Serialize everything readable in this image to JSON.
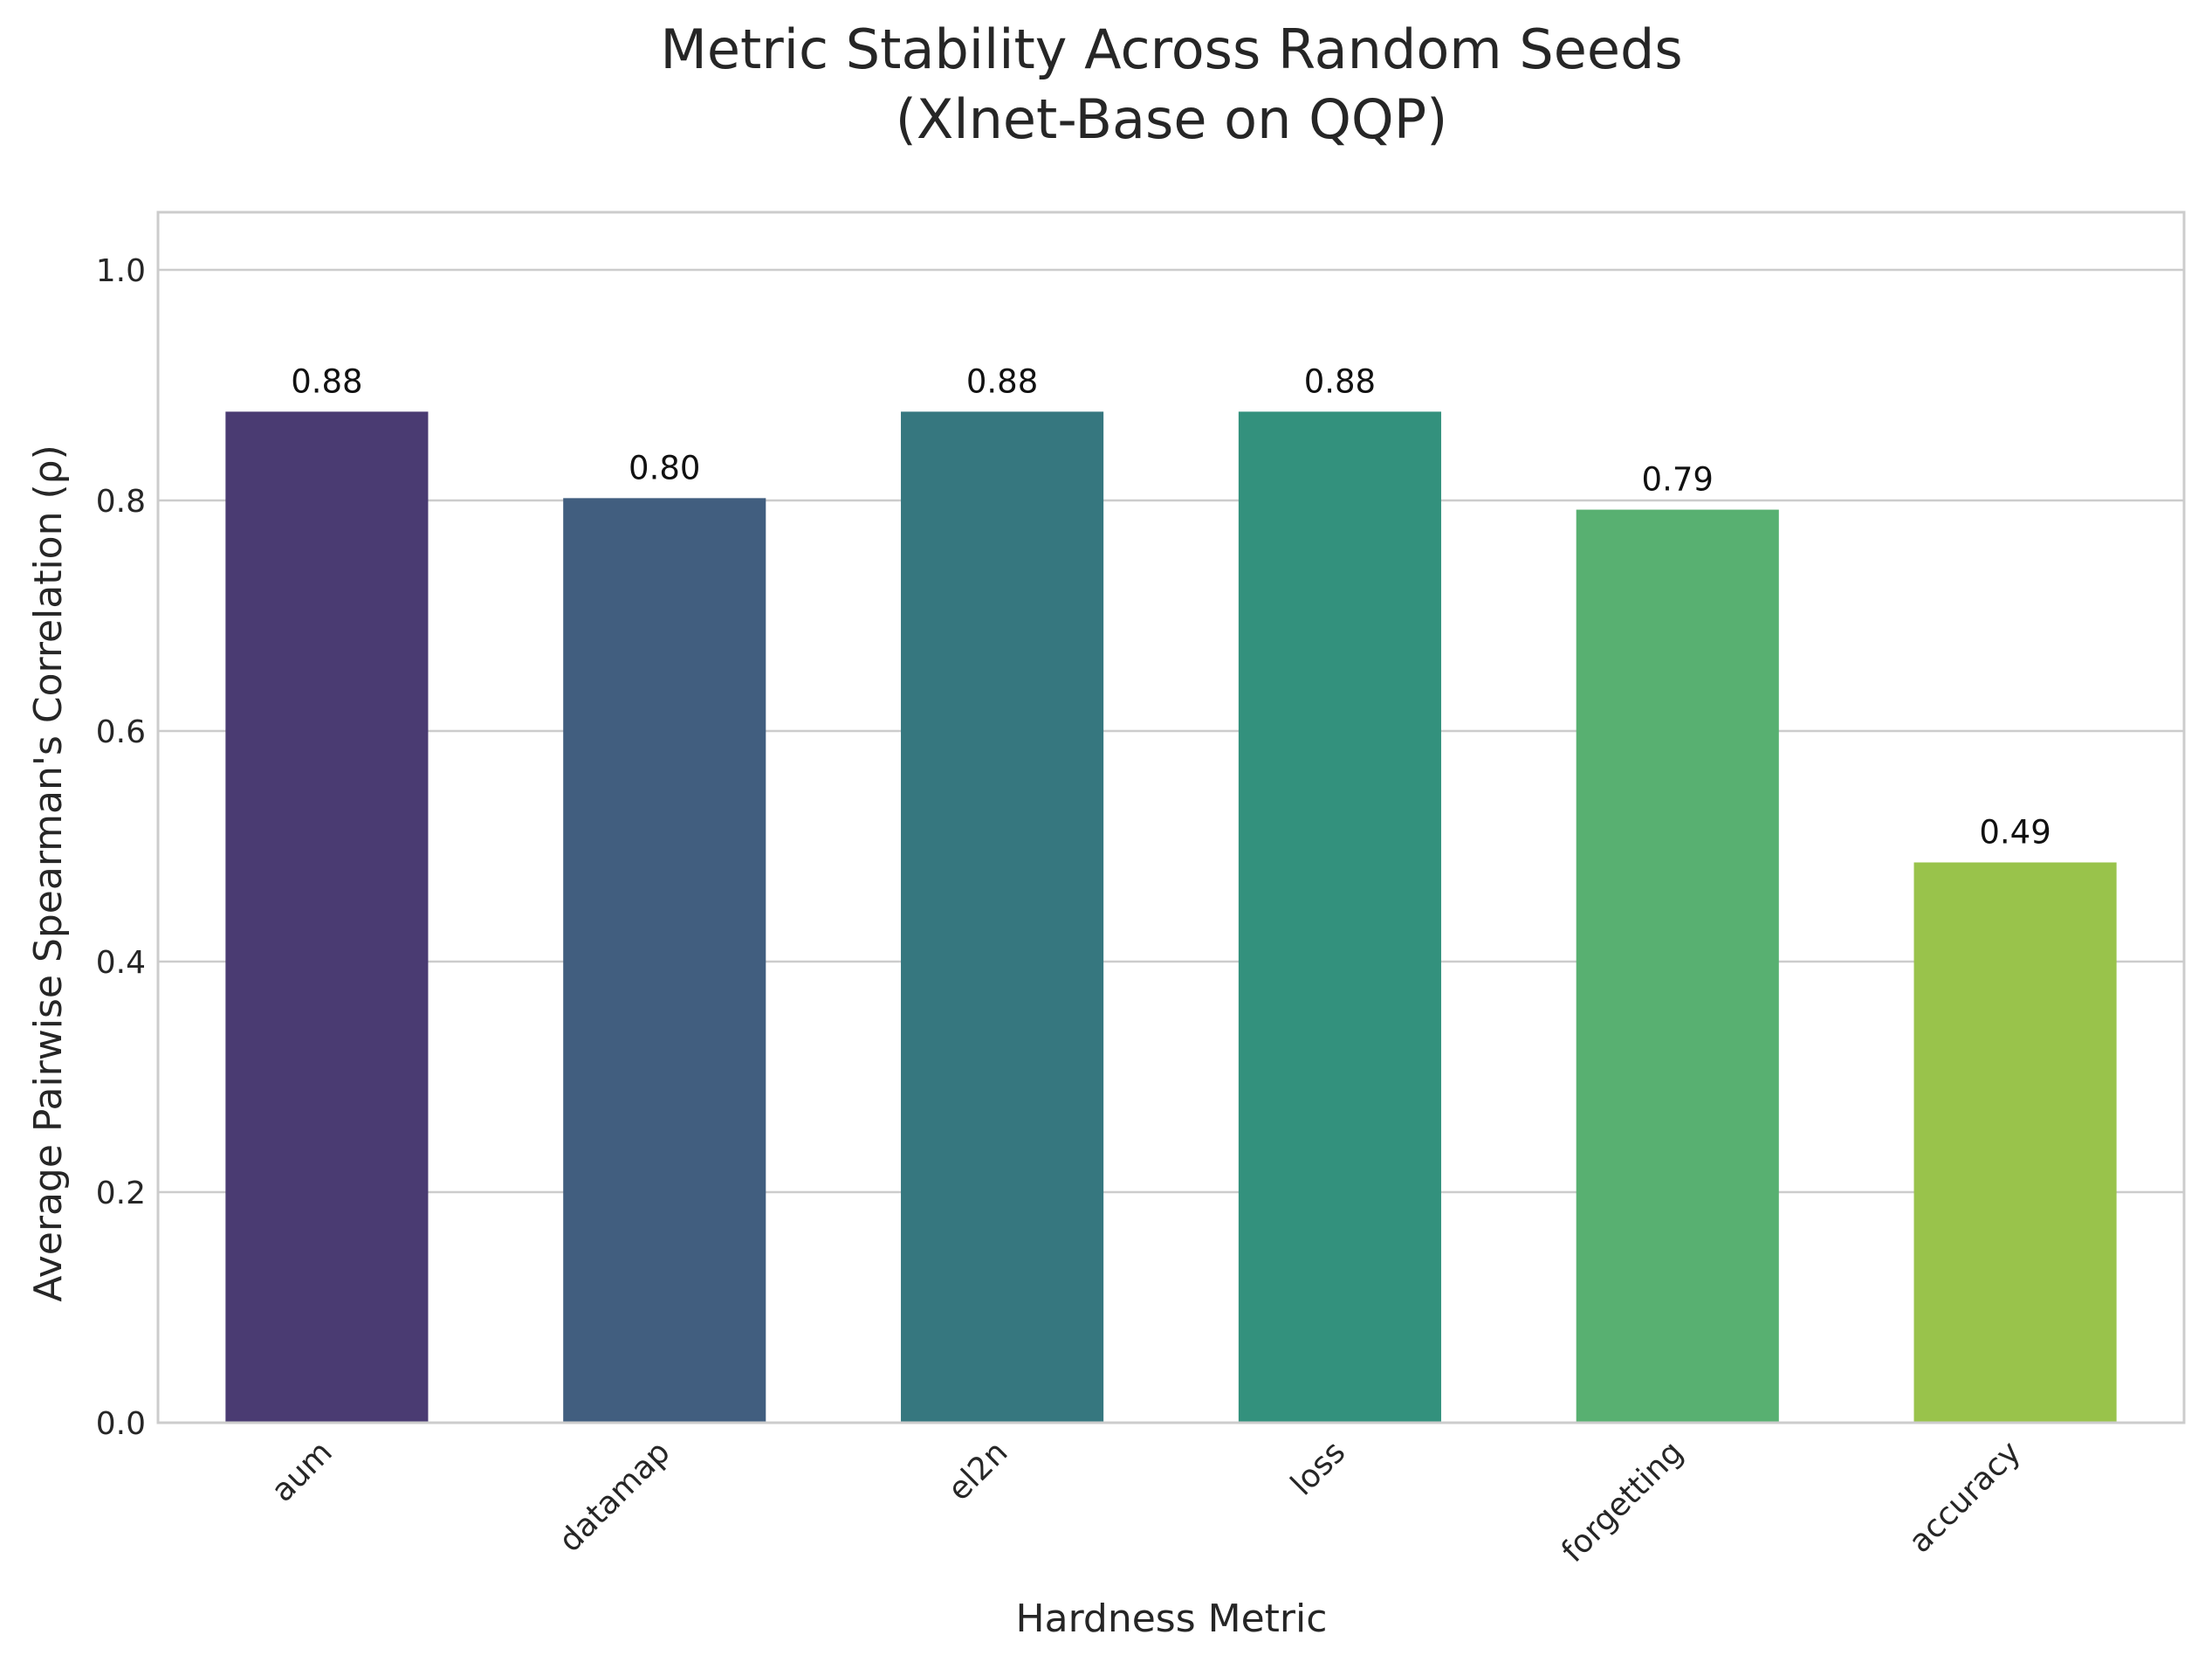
{
  "chart_data": {
    "type": "bar",
    "title_lines": [
      "Metric Stability Across Random Seeds",
      "(Xlnet-Base on QQP)"
    ],
    "xlabel": "Hardness Metric",
    "ylabel": "Average Pairwise Spearman's Correlation (ρ)",
    "categories": [
      "aum",
      "datamap",
      "el2n",
      "loss",
      "forgetting",
      "accuracy"
    ],
    "values": [
      0.877,
      0.802,
      0.877,
      0.877,
      0.792,
      0.486
    ],
    "value_labels": [
      "0.88",
      "0.80",
      "0.88",
      "0.88",
      "0.79",
      "0.49"
    ],
    "colors": [
      "#4a3b72",
      "#415e7f",
      "#36777f",
      "#33917d",
      "#58b071",
      "#99c34b"
    ],
    "yticks": [
      0.0,
      0.2,
      0.4,
      0.6,
      0.8,
      1.0
    ],
    "ytick_labels": [
      "0.0",
      "0.2",
      "0.4",
      "0.6",
      "0.8",
      "1.0"
    ],
    "ylim": [
      0,
      1.05
    ],
    "grid": "horizontal",
    "xtick_rotation": "45"
  }
}
